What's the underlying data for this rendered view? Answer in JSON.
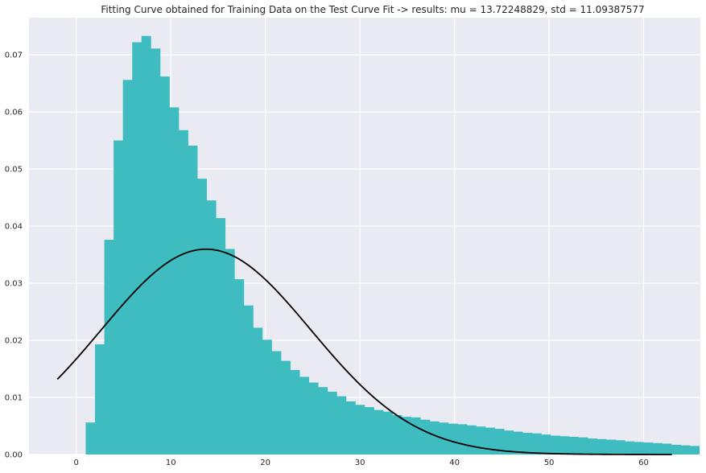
{
  "chart_data": {
    "type": "bar",
    "title": "Fitting Curve obtained for Training Data on the Test Curve Fit -> results: mu = 13.72248829,  std = 11.09387577",
    "xlabel": "",
    "ylabel": "",
    "xlim": [
      -5,
      66
    ],
    "ylim": [
      0,
      0.0765
    ],
    "xticks": [
      0,
      10,
      20,
      30,
      40,
      50,
      60
    ],
    "yticks": [
      0.0,
      0.01,
      0.02,
      0.03,
      0.04,
      0.05,
      0.06,
      0.07
    ],
    "ytick_labels": [
      "0.00",
      "0.01",
      "0.02",
      "0.03",
      "0.04",
      "0.05",
      "0.06",
      "0.07"
    ],
    "grid": true,
    "histogram": {
      "bin_start": 1,
      "bin_width": 0.983,
      "values": [
        0.0056,
        0.0193,
        0.0376,
        0.055,
        0.0656,
        0.0722,
        0.0733,
        0.0711,
        0.0662,
        0.0608,
        0.0568,
        0.0541,
        0.0483,
        0.0445,
        0.0414,
        0.036,
        0.0307,
        0.0261,
        0.0222,
        0.0201,
        0.0181,
        0.0164,
        0.0148,
        0.0136,
        0.0126,
        0.0118,
        0.011,
        0.0102,
        0.0093,
        0.0087,
        0.0083,
        0.0078,
        0.0075,
        0.0069,
        0.0066,
        0.0065,
        0.0061,
        0.0058,
        0.0056,
        0.0054,
        0.0053,
        0.0051,
        0.0049,
        0.0047,
        0.0045,
        0.0042,
        0.004,
        0.0038,
        0.0037,
        0.0035,
        0.0033,
        0.0032,
        0.0031,
        0.003,
        0.0028,
        0.0027,
        0.0026,
        0.0025,
        0.0023,
        0.0022,
        0.0021,
        0.002,
        0.0019,
        0.0017,
        0.0016,
        0.0015
      ],
      "color": "#3fbcbf"
    },
    "fit_curve": {
      "mu": 13.72248829,
      "std": 11.09387577,
      "x_range": [
        -2,
        63
      ],
      "color": "#000000"
    }
  }
}
